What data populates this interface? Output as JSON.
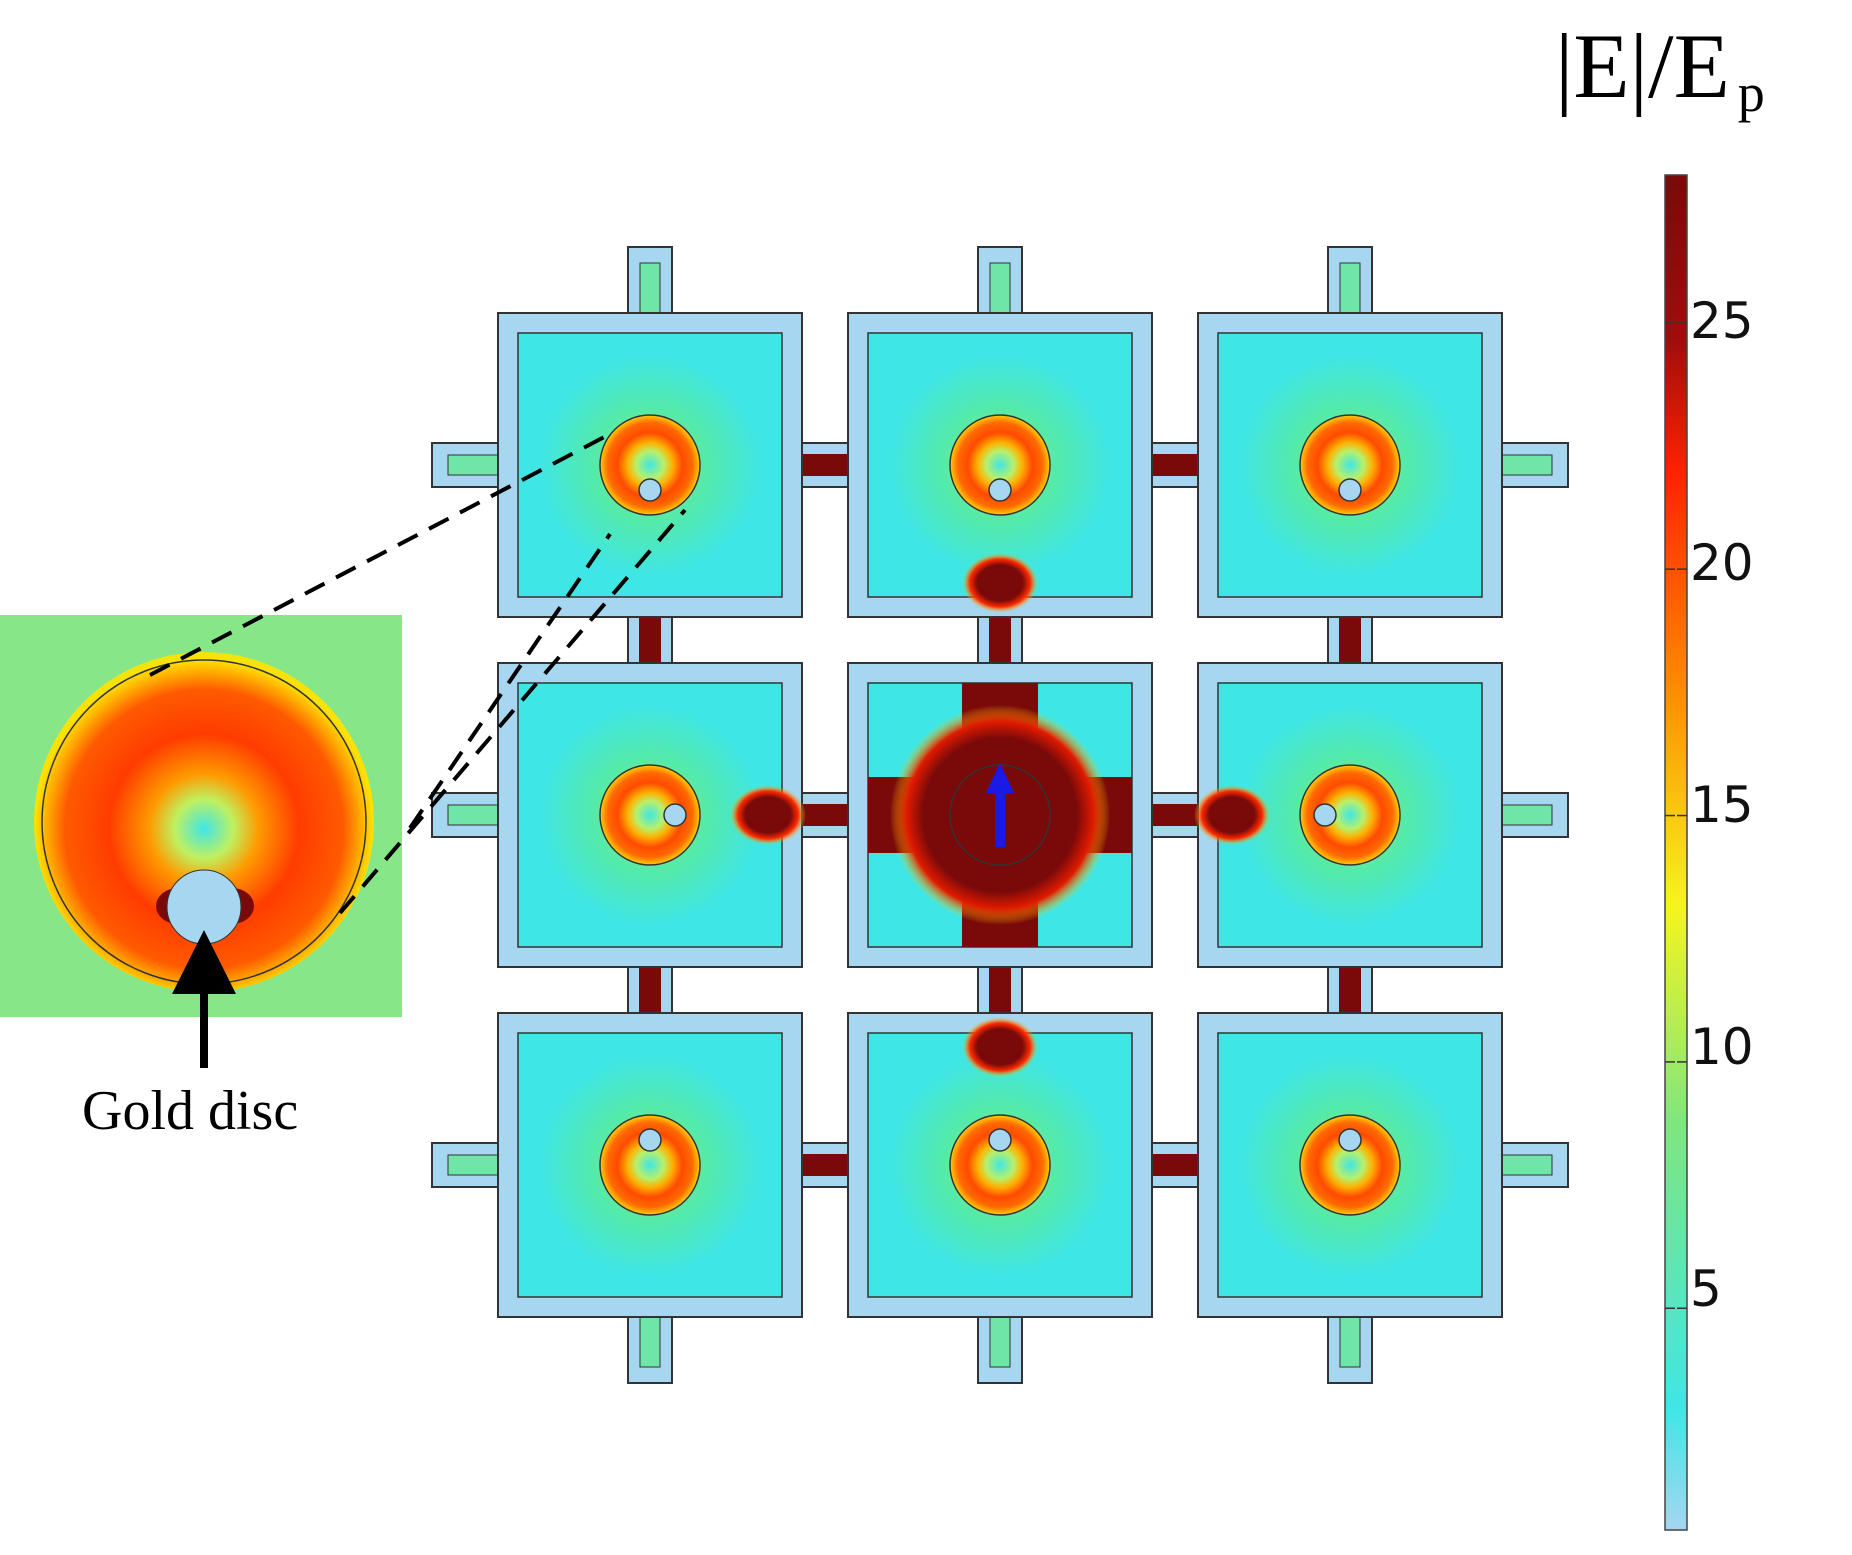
{
  "colorbar": {
    "title_main": "|E|/E",
    "title_sub": "p",
    "ticks": [
      "25",
      "20",
      "15",
      "10",
      "5"
    ],
    "tick_values": [
      25,
      20,
      15,
      10,
      5
    ],
    "min": 0.5,
    "max": 28,
    "colormap": [
      "#a6d6f0",
      "#3fe6e6",
      "#7fe67f",
      "#f5f51e",
      "#ff8c00",
      "#ff2200",
      "#7a0a0a"
    ]
  },
  "inset": {
    "caption": "Gold disc"
  },
  "colors": {
    "frame_fill": "#a6d6f0",
    "outline": "#333333",
    "field_background": "#3fe6e6",
    "hot": "#7a0a0a",
    "polarization_arrow": "#1a1ae6",
    "caption_arrow": "#000000"
  },
  "array": {
    "rows": 3,
    "cols": 3
  }
}
